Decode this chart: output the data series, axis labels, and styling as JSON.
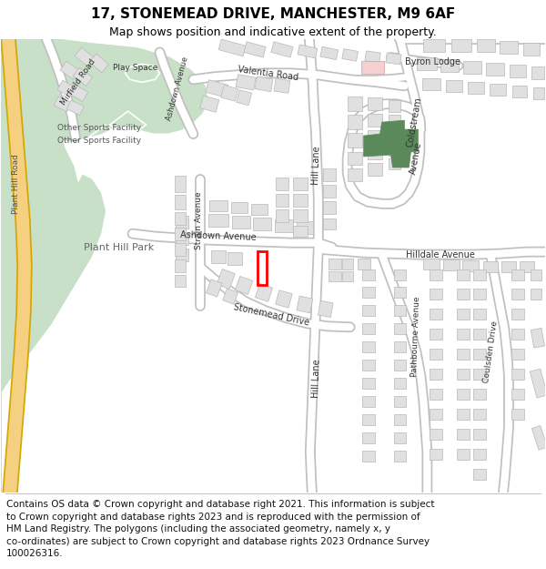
{
  "title": "17, STONEMEAD DRIVE, MANCHESTER, M9 6AF",
  "subtitle": "Map shows position and indicative extent of the property.",
  "copyright": "Contains OS data © Crown copyright and database right 2021. This information is subject\nto Crown copyright and database rights 2023 and is reproduced with the permission of\nHM Land Registry. The polygons (including the associated geometry, namely x, y\nco-ordinates) are subject to Crown copyright and database rights 2023 Ordnance Survey\n100026316.",
  "bg_color": "#ffffff",
  "map_bg": "#f5f4f2",
  "park_color": "#c8dfc8",
  "road_color": "#ffffff",
  "road_outline": "#c8c8c8",
  "building_color": "#e0e0e0",
  "building_outline": "#b8b8b8",
  "highlight_stroke": "#ff0000",
  "green_fill": "#5a8a5a",
  "title_fontsize": 11,
  "subtitle_fontsize": 9,
  "copyright_fontsize": 7.5,
  "yellow_road": "#f5d080",
  "yellow_road_outline": "#d4a800"
}
